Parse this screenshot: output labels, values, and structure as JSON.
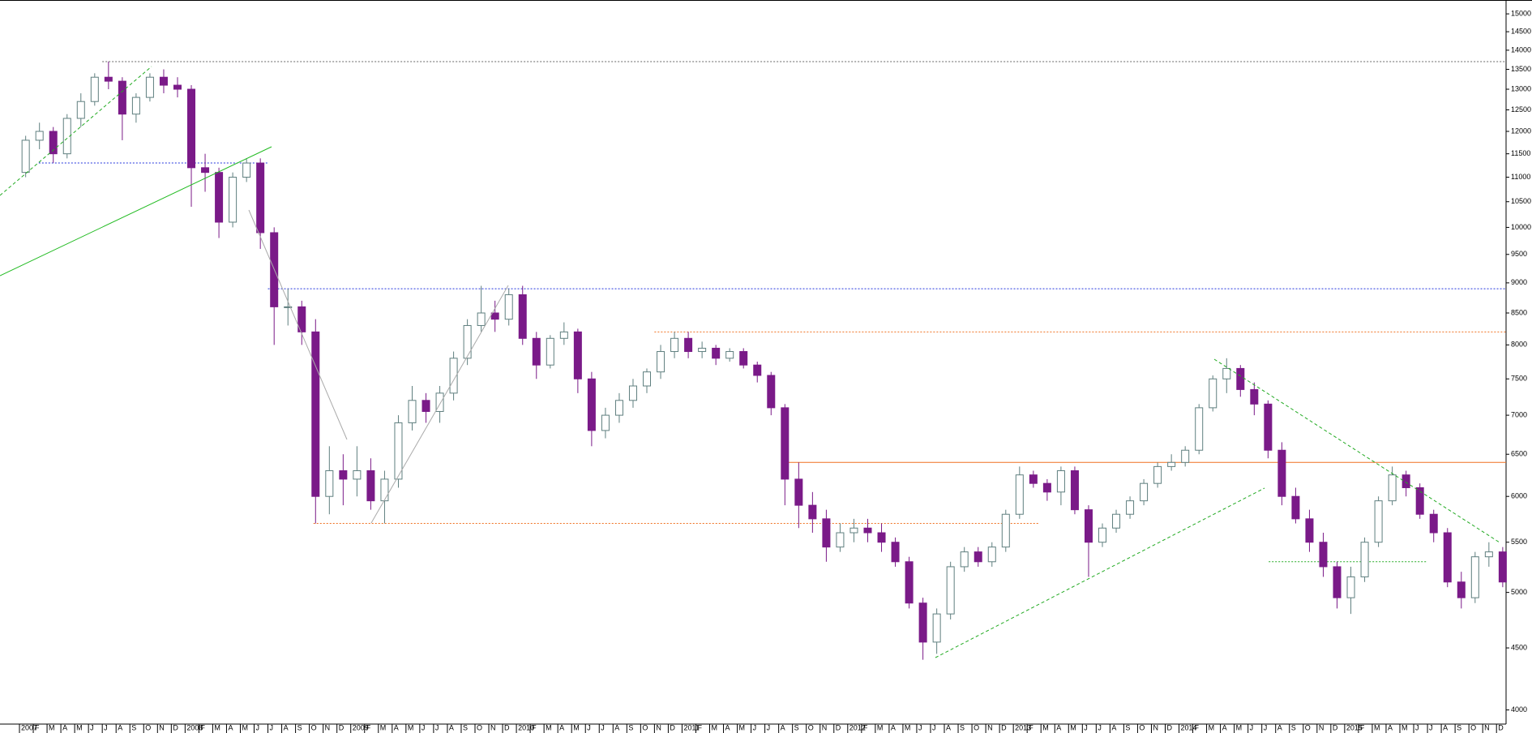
{
  "chart_data": {
    "type": "candlestick",
    "log_scale": true,
    "ylim": [
      3900,
      15400
    ],
    "yticks": [
      4000,
      4500,
      5000,
      5500,
      6000,
      6500,
      7000,
      7500,
      8000,
      8500,
      9000,
      9500,
      10000,
      10500,
      11000,
      11500,
      12000,
      12500,
      13000,
      13500,
      14000,
      14500,
      15000
    ],
    "up_color": "#ffffff",
    "up_stroke": "#5f7f7f",
    "down_color": "#7a1a88",
    "categories": [
      "2007",
      "F",
      "M",
      "A",
      "M",
      "J",
      "J",
      "A",
      "S",
      "O",
      "N",
      "D",
      "2008",
      "F",
      "M",
      "A",
      "M",
      "J",
      "J",
      "A",
      "S",
      "O",
      "N",
      "D",
      "2009",
      "F",
      "M",
      "A",
      "M",
      "J",
      "J",
      "A",
      "S",
      "O",
      "N",
      "D",
      "2010",
      "F",
      "M",
      "A",
      "M",
      "J",
      "J",
      "A",
      "S",
      "O",
      "N",
      "D",
      "2011",
      "F",
      "M",
      "A",
      "M",
      "J",
      "J",
      "A",
      "S",
      "O",
      "N",
      "D",
      "2012",
      "F",
      "M",
      "A",
      "M",
      "J",
      "J",
      "A",
      "S",
      "O",
      "N",
      "D",
      "2013",
      "F",
      "M",
      "A",
      "M",
      "J",
      "J",
      "A",
      "S",
      "O",
      "N",
      "D",
      "2014",
      "F",
      "M",
      "A",
      "M",
      "J",
      "J",
      "A",
      "S",
      "O",
      "N",
      "D",
      "2015",
      "F",
      "M",
      "A",
      "M",
      "J",
      "J",
      "A",
      "S",
      "O",
      "N",
      "D"
    ],
    "open": [
      11100,
      11800,
      12000,
      11500,
      12300,
      12700,
      13300,
      13200,
      12400,
      12800,
      13300,
      13100,
      13000,
      11200,
      11100,
      10100,
      11000,
      11300,
      9900,
      8600,
      8600,
      8200,
      6000,
      6300,
      6200,
      6300,
      5950,
      6200,
      6900,
      7200,
      7050,
      7300,
      7800,
      8300,
      8500,
      8400,
      8800,
      8100,
      7700,
      8100,
      8200,
      7500,
      6800,
      7000,
      7200,
      7400,
      7600,
      7900,
      8100,
      7900,
      7950,
      7800,
      7900,
      7700,
      7550,
      7100,
      6200,
      5900,
      5750,
      5450,
      5600,
      5650,
      5600,
      5500,
      5300,
      4900,
      4550,
      4800,
      5250,
      5400,
      5300,
      5450,
      5800,
      6250,
      6150,
      6050,
      6300,
      5850,
      5500,
      5650,
      5800,
      5950,
      6150,
      6350,
      6400,
      6550,
      7100,
      7500,
      7650,
      7350,
      7150,
      6550,
      6000,
      5750,
      5500,
      5250,
      4950,
      5150,
      5500,
      5950,
      6250,
      6100,
      5800,
      5600,
      5100,
      4950,
      5350,
      5400
    ],
    "high": [
      11900,
      12200,
      12100,
      12400,
      12900,
      13400,
      13700,
      13300,
      12900,
      13400,
      13500,
      13300,
      13100,
      11500,
      11200,
      11100,
      11400,
      11400,
      10000,
      8900,
      8700,
      8400,
      6600,
      6500,
      6600,
      6450,
      6300,
      7000,
      7400,
      7300,
      7400,
      7900,
      8400,
      8950,
      8700,
      8900,
      8950,
      8200,
      8150,
      8350,
      8250,
      7600,
      7100,
      7300,
      7500,
      7650,
      8000,
      8200,
      8200,
      8050,
      8000,
      7950,
      7950,
      7750,
      7600,
      7150,
      6400,
      6050,
      5850,
      5700,
      5750,
      5750,
      5700,
      5550,
      5350,
      4950,
      4850,
      5300,
      5450,
      5450,
      5500,
      5850,
      6350,
      6300,
      6200,
      6350,
      6350,
      5900,
      5700,
      5850,
      6000,
      6200,
      6400,
      6500,
      6600,
      7150,
      7550,
      7800,
      7700,
      7450,
      7200,
      6650,
      6100,
      5850,
      5600,
      5300,
      5250,
      5550,
      6000,
      6350,
      6300,
      6150,
      5850,
      5650,
      5200,
      5400,
      5500,
      5450
    ],
    "low": [
      11000,
      11600,
      11300,
      11400,
      12100,
      12600,
      13000,
      11800,
      12200,
      12700,
      12900,
      12800,
      10400,
      10700,
      9800,
      10000,
      10900,
      9600,
      8000,
      8300,
      8000,
      5700,
      5800,
      5900,
      6000,
      5850,
      5700,
      6100,
      6800,
      6900,
      6900,
      7200,
      7700,
      8200,
      8200,
      8300,
      8000,
      7500,
      7650,
      8000,
      7300,
      6600,
      6700,
      6900,
      7100,
      7300,
      7500,
      7800,
      7800,
      7800,
      7700,
      7750,
      7650,
      7450,
      7000,
      5900,
      5650,
      5600,
      5300,
      5400,
      5500,
      5500,
      5400,
      5250,
      4850,
      4400,
      4450,
      4750,
      5200,
      5250,
      5250,
      5400,
      5750,
      6100,
      5950,
      5900,
      5800,
      5150,
      5450,
      5600,
      5750,
      5900,
      6100,
      6300,
      6350,
      6500,
      7050,
      7300,
      7250,
      7000,
      6450,
      5900,
      5700,
      5400,
      5150,
      4850,
      4800,
      5100,
      5450,
      5900,
      6000,
      5750,
      5500,
      5050,
      4850,
      4900,
      5250,
      5050
    ],
    "close": [
      11800,
      12000,
      11500,
      12300,
      12700,
      13300,
      13200,
      12400,
      12800,
      13300,
      13100,
      13000,
      11200,
      11100,
      10100,
      11000,
      11300,
      9900,
      8600,
      8600,
      8200,
      6000,
      6300,
      6200,
      6300,
      5950,
      6200,
      6900,
      7200,
      7050,
      7300,
      7800,
      8300,
      8500,
      8400,
      8800,
      8100,
      7700,
      8100,
      8200,
      7500,
      6800,
      7000,
      7200,
      7400,
      7600,
      7900,
      8100,
      7900,
      7950,
      7800,
      7900,
      7700,
      7550,
      7100,
      6200,
      5900,
      5750,
      5450,
      5600,
      5650,
      5600,
      5500,
      5300,
      4900,
      4550,
      4800,
      5250,
      5400,
      5300,
      5450,
      5800,
      6250,
      6150,
      6050,
      6300,
      5850,
      5500,
      5650,
      5800,
      5950,
      6150,
      6350,
      6400,
      6550,
      7100,
      7500,
      7650,
      7350,
      7150,
      6550,
      6000,
      5750,
      5500,
      5250,
      4950,
      5150,
      5500,
      5950,
      6250,
      6100,
      5800,
      5600,
      5100,
      4950,
      5350,
      5400,
      5100
    ],
    "levels": [
      {
        "value": 13700,
        "color": "#666666",
        "style": "dotted"
      },
      {
        "value": 11300,
        "color": "#2233dd",
        "style": "dotted"
      },
      {
        "value": 8900,
        "color": "#2233dd",
        "style": "dotted"
      },
      {
        "value": 8200,
        "color": "#f07020",
        "style": "dotted"
      },
      {
        "value": 6400,
        "color": "#f07020",
        "style": "solid"
      },
      {
        "value": 5700,
        "color": "#f07020",
        "style": "dotted"
      },
      {
        "value": 5300,
        "color": "#22aa22",
        "style": "dotted"
      }
    ]
  }
}
